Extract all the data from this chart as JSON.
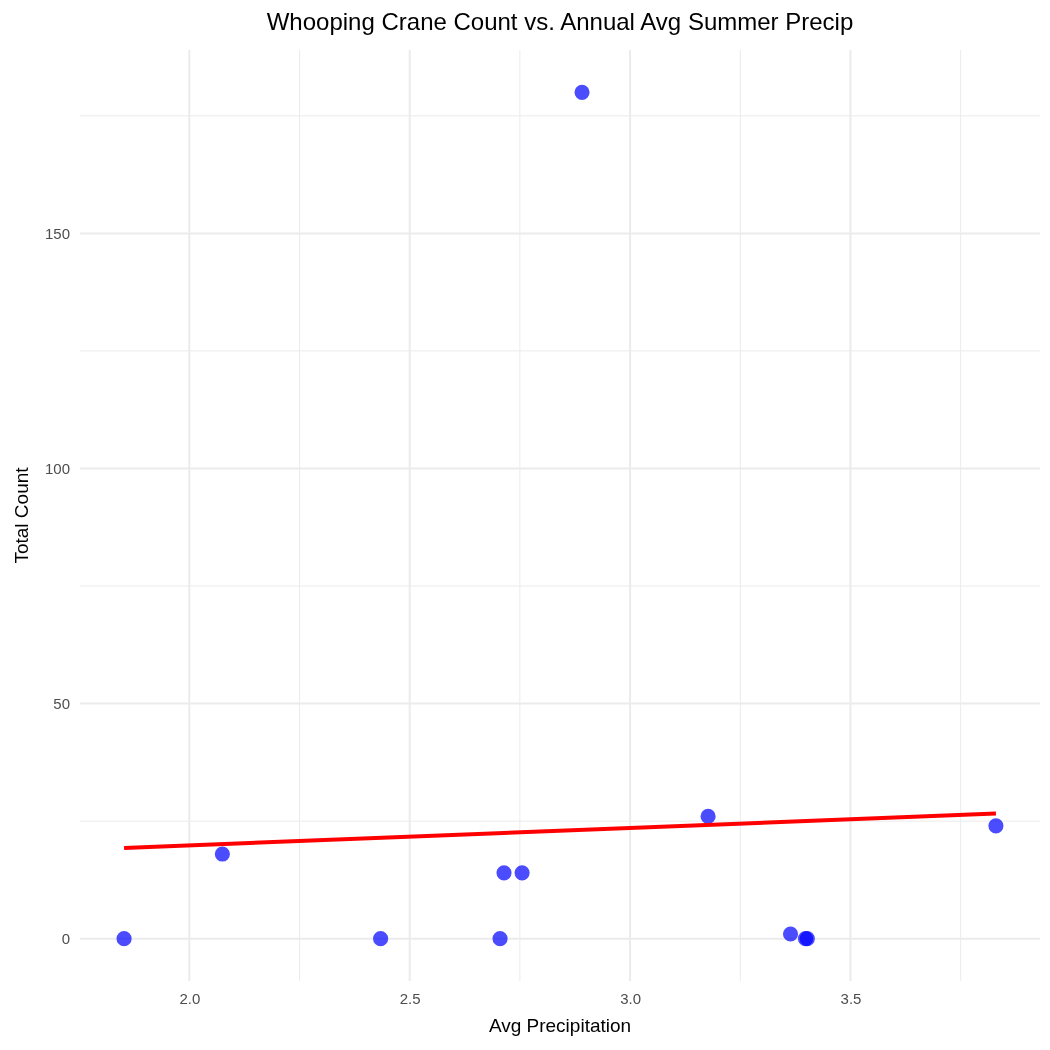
{
  "chart_data": {
    "type": "scatter",
    "title": "Whooping Crane Count vs. Annual Avg Summer Precip",
    "xlabel": "Avg Precipitation",
    "ylabel": "Total Count",
    "xlim": [
      1.752,
      3.93
    ],
    "ylim": [
      -9,
      189
    ],
    "xticks": [
      {
        "value": 2.0,
        "label": "2.0"
      },
      {
        "value": 2.25,
        "label": null
      },
      {
        "value": 2.5,
        "label": "2.5"
      },
      {
        "value": 2.75,
        "label": null
      },
      {
        "value": 3.0,
        "label": "3.0"
      },
      {
        "value": 3.25,
        "label": null
      },
      {
        "value": 3.5,
        "label": "3.5"
      },
      {
        "value": 3.75,
        "label": null
      }
    ],
    "yticks": [
      0,
      {
        "value": 25,
        "label": null
      },
      50,
      {
        "value": 75,
        "label": null
      },
      100,
      {
        "value": 125,
        "label": null
      },
      150,
      {
        "value": 175,
        "label": null
      }
    ],
    "grid": true,
    "series": [
      {
        "marker": "circle",
        "color": "#0000ff",
        "x": [
          1.852,
          2.075,
          2.434,
          2.705,
          2.714,
          2.755,
          2.891,
          3.177,
          3.364,
          3.398,
          3.402,
          3.83
        ],
        "values": [
          0,
          18,
          0,
          0,
          14,
          14,
          180,
          26,
          1,
          0,
          0,
          24
        ]
      },
      {
        "type": "line",
        "marker": "none",
        "color": "#ff0000",
        "x": [
          1.852,
          3.83
        ],
        "values": [
          19.3,
          26.6
        ]
      }
    ]
  }
}
